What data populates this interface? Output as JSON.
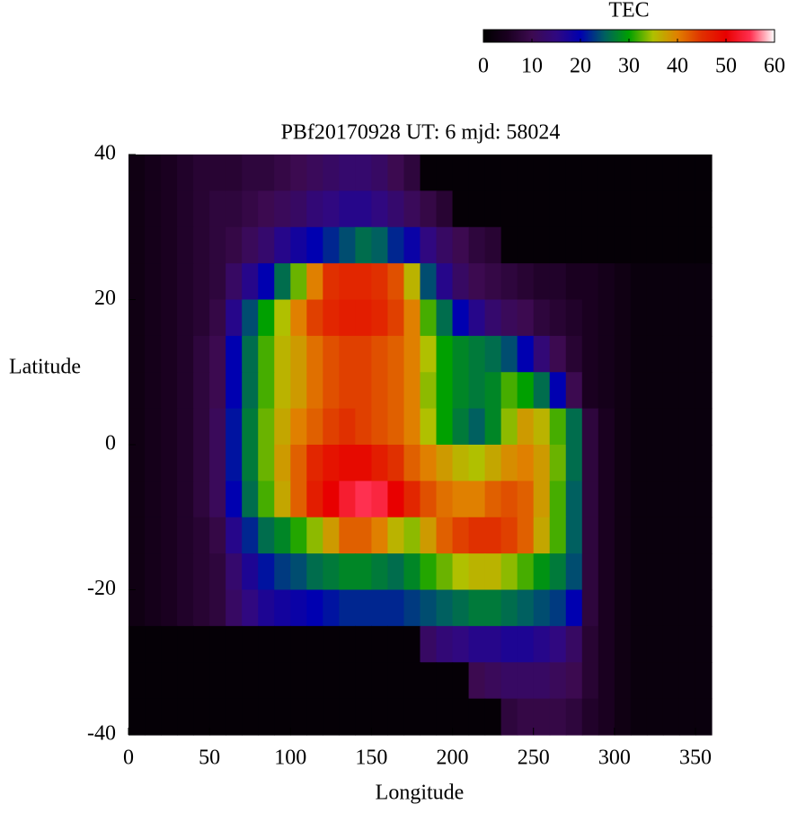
{
  "chart_data": {
    "type": "heatmap",
    "title": "PBf20170928  UT: 6  mjd: 58024",
    "x_label": "Longitude",
    "y_label": "Latitude",
    "colorbar_label": "TEC",
    "xlim": [
      0,
      360
    ],
    "xticks": [
      0,
      50,
      100,
      150,
      200,
      250,
      300,
      350
    ],
    "ylim": [
      -40,
      40
    ],
    "yticks": [
      -40,
      -20,
      0,
      20,
      40
    ],
    "zlim": [
      0,
      60
    ],
    "zticks": [
      0,
      10,
      20,
      30,
      40,
      50,
      60
    ],
    "colors": [
      "#000000",
      "#1a0020",
      "#3c0a50",
      "#300880",
      "#0000b0",
      "#006060",
      "#00a000",
      "#b0c000",
      "#e08000",
      "#e03000",
      "#e80000",
      "#ff3050",
      "#ffffff"
    ],
    "x": [
      5,
      15,
      25,
      35,
      45,
      55,
      65,
      75,
      85,
      95,
      105,
      115,
      125,
      135,
      145,
      155,
      165,
      175,
      185,
      195,
      205,
      215,
      225,
      235,
      245,
      255,
      265,
      275,
      285,
      295,
      305,
      315,
      325,
      335,
      345,
      355
    ],
    "y": [
      37.5,
      32.5,
      27.5,
      22.5,
      17.5,
      12.5,
      7.5,
      2.5,
      -2.5,
      -7.5,
      -12.5,
      -17.5,
      -22.5,
      -27.5,
      -32.5,
      -37.5
    ],
    "z": [
      [
        3,
        4,
        5,
        6,
        7,
        7,
        7,
        8,
        8,
        9,
        10,
        11,
        12,
        13,
        13,
        12,
        10,
        8,
        1,
        1,
        1,
        1,
        1,
        1,
        1,
        1,
        1,
        1,
        1,
        1,
        1,
        1,
        1,
        1,
        1,
        1
      ],
      [
        3,
        4,
        5,
        6,
        7,
        8,
        8,
        9,
        10,
        11,
        12,
        14,
        15,
        16,
        16,
        15,
        13,
        11,
        9,
        7,
        1,
        1,
        1,
        1,
        1,
        1,
        1,
        1,
        1,
        1,
        1,
        1,
        1,
        1,
        1,
        1
      ],
      [
        3,
        4,
        5,
        6,
        7,
        8,
        9,
        11,
        13,
        16,
        18,
        20,
        22,
        24,
        26,
        25,
        22,
        19,
        15,
        12,
        10,
        8,
        7,
        1,
        1,
        1,
        1,
        1,
        1,
        1,
        1,
        1,
        1,
        1,
        1,
        1
      ],
      [
        3,
        4,
        5,
        6,
        7,
        8,
        12,
        16,
        20,
        26,
        33,
        40,
        45,
        46,
        46,
        45,
        43,
        36,
        24,
        16,
        12,
        10,
        9,
        8,
        7,
        6,
        6,
        5,
        5,
        4,
        3,
        2,
        2,
        2,
        2,
        2
      ],
      [
        3,
        4,
        5,
        6,
        7,
        9,
        16,
        24,
        30,
        35,
        40,
        44,
        46,
        47,
        47,
        46,
        44,
        40,
        32,
        26,
        20,
        16,
        13,
        11,
        10,
        8,
        7,
        6,
        5,
        4,
        3,
        2,
        2,
        2,
        2,
        2
      ],
      [
        3,
        4,
        5,
        6,
        8,
        10,
        20,
        26,
        32,
        36,
        38,
        41,
        43,
        44,
        44,
        43,
        42,
        40,
        35,
        30,
        28,
        27,
        26,
        24,
        20,
        14,
        10,
        7,
        5,
        4,
        3,
        2,
        2,
        2,
        2,
        2
      ],
      [
        3,
        4,
        5,
        6,
        8,
        10,
        20,
        26,
        32,
        36,
        38,
        41,
        43,
        44,
        44,
        43,
        42,
        40,
        34,
        30,
        28,
        27,
        28,
        32,
        30,
        26,
        20,
        10,
        5,
        4,
        3,
        2,
        2,
        2,
        2,
        2
      ],
      [
        3,
        4,
        5,
        6,
        8,
        11,
        21,
        27,
        33,
        37,
        40,
        42,
        44,
        45,
        44,
        43,
        42,
        40,
        35,
        30,
        27,
        25,
        28,
        34,
        38,
        36,
        32,
        26,
        8,
        5,
        3,
        2,
        2,
        2,
        2,
        2
      ],
      [
        3,
        4,
        5,
        6,
        8,
        11,
        21,
        27,
        33,
        38,
        42,
        46,
        48,
        49,
        49,
        47,
        45,
        42,
        40,
        38,
        36,
        35,
        37,
        39,
        40,
        38,
        33,
        26,
        8,
        5,
        3,
        2,
        2,
        2,
        2,
        2
      ],
      [
        3,
        4,
        5,
        6,
        8,
        11,
        20,
        26,
        32,
        37,
        42,
        47,
        50,
        53,
        55,
        54,
        50,
        46,
        43,
        41,
        40,
        40,
        42,
        43,
        42,
        38,
        32,
        25,
        8,
        5,
        3,
        2,
        2,
        2,
        2,
        2
      ],
      [
        3,
        4,
        5,
        6,
        7,
        9,
        16,
        22,
        26,
        28,
        31,
        34,
        38,
        42,
        42,
        40,
        36,
        34,
        38,
        42,
        44,
        45,
        45,
        44,
        42,
        37,
        32,
        25,
        8,
        5,
        3,
        2,
        2,
        2,
        2,
        2
      ],
      [
        3,
        4,
        5,
        6,
        7,
        8,
        13,
        17,
        21,
        23,
        24,
        26,
        27,
        28,
        28,
        27,
        26,
        28,
        31,
        33,
        35,
        36,
        36,
        34,
        32,
        29,
        27,
        24,
        8,
        5,
        3,
        2,
        2,
        2,
        2,
        2
      ],
      [
        3,
        4,
        5,
        6,
        7,
        8,
        12,
        15,
        17,
        18,
        19,
        20,
        21,
        22,
        22,
        22,
        22,
        23,
        24,
        25,
        26,
        27,
        27,
        26,
        25,
        24,
        23,
        20,
        8,
        5,
        3,
        2,
        2,
        2,
        2,
        2
      ],
      [
        1,
        1,
        1,
        1,
        1,
        1,
        1,
        1,
        1,
        1,
        1,
        1,
        1,
        1,
        1,
        1,
        1,
        1,
        12,
        14,
        15,
        16,
        16,
        17,
        17,
        16,
        15,
        12,
        7,
        5,
        3,
        2,
        2,
        2,
        2,
        2
      ],
      [
        1,
        1,
        1,
        1,
        1,
        1,
        1,
        1,
        1,
        1,
        1,
        1,
        1,
        1,
        1,
        1,
        1,
        1,
        1,
        1,
        1,
        10,
        11,
        12,
        12,
        12,
        11,
        10,
        7,
        5,
        3,
        2,
        2,
        2,
        2,
        2
      ],
      [
        1,
        1,
        1,
        1,
        1,
        1,
        1,
        1,
        1,
        1,
        1,
        1,
        1,
        1,
        1,
        1,
        1,
        1,
        1,
        1,
        1,
        1,
        1,
        8,
        9,
        9,
        9,
        8,
        6,
        5,
        3,
        2,
        2,
        2,
        2,
        2
      ]
    ]
  }
}
